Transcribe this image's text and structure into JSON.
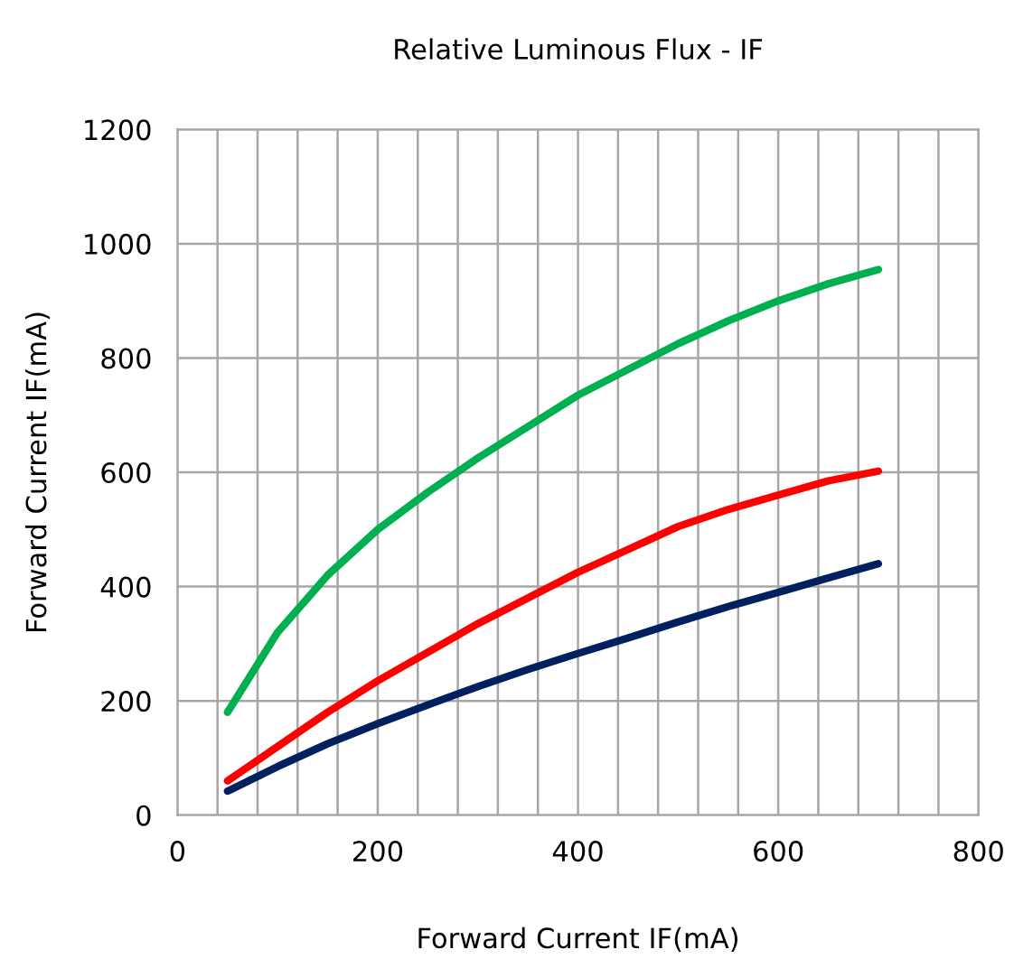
{
  "chart_data": {
    "type": "line",
    "title": "Relative Luminous Flux - IF",
    "xlabel": "Forward Current IF(mA)",
    "ylabel": "Forward Current IF(mA)",
    "x": [
      50,
      100,
      150,
      200,
      250,
      300,
      350,
      400,
      450,
      500,
      550,
      600,
      650,
      700
    ],
    "series": [
      {
        "color": "#00b050",
        "values": [
          180,
          320,
          420,
          500,
          565,
          625,
          680,
          735,
          780,
          825,
          865,
          900,
          930,
          955
        ]
      },
      {
        "color": "#ff0000",
        "values": [
          60,
          120,
          180,
          235,
          285,
          335,
          380,
          425,
          465,
          505,
          535,
          560,
          585,
          602
        ]
      },
      {
        "color": "#002060",
        "values": [
          42,
          85,
          125,
          160,
          193,
          225,
          255,
          283,
          310,
          338,
          365,
          390,
          415,
          440
        ]
      }
    ],
    "xlim": [
      0,
      800
    ],
    "ylim": [
      0,
      1200
    ],
    "xticks": [
      0,
      {
        "value": 40,
        "label": null
      },
      {
        "value": 80,
        "label": null
      },
      {
        "value": 120,
        "label": null
      },
      {
        "value": 160,
        "label": null
      },
      200,
      {
        "value": 240,
        "label": null
      },
      {
        "value": 280,
        "label": null
      },
      {
        "value": 320,
        "label": null
      },
      {
        "value": 360,
        "label": null
      },
      400,
      {
        "value": 440,
        "label": null
      },
      {
        "value": 480,
        "label": null
      },
      {
        "value": 520,
        "label": null
      },
      {
        "value": 560,
        "label": null
      },
      600,
      {
        "value": 640,
        "label": null
      },
      {
        "value": 680,
        "label": null
      },
      {
        "value": 720,
        "label": null
      },
      {
        "value": 760,
        "label": null
      },
      800
    ],
    "yticks": [
      0,
      200,
      400,
      600,
      800,
      1000,
      1200
    ],
    "grid": true,
    "legend": false,
    "marker": "none",
    "line_style": "solid"
  }
}
